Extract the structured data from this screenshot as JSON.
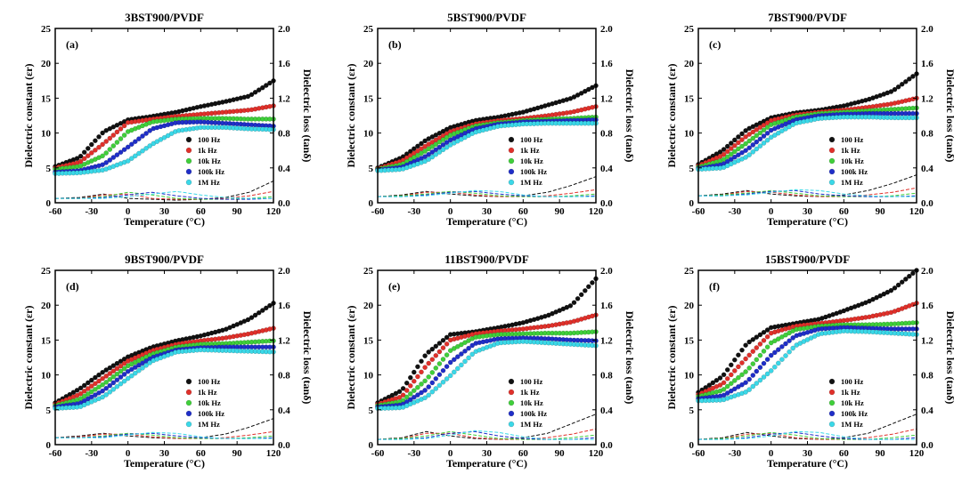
{
  "figure": {
    "temperature_ticks": [
      "-60",
      "-30",
      "0",
      "30",
      "60",
      "90",
      "120"
    ],
    "epsilon_ticks": [
      "0",
      "5",
      "10",
      "15",
      "20",
      "25"
    ],
    "loss_ticks": [
      "0.0",
      "0.4",
      "0.8",
      "1.2",
      "1.6",
      "2.0"
    ],
    "xlabel": "Temperature (°C)",
    "ylabel_left": "Dielectric constant (εr)",
    "ylabel_right": "Dielectric loss (tanδ)",
    "legend": [
      "100  Hz",
      "1k  Hz",
      "10k  Hz",
      "100k  Hz",
      "1M  Hz"
    ]
  },
  "colors": {
    "100 Hz": "#111111",
    "1k Hz": "#e0302a",
    "10k Hz": "#3fcf3a",
    "100k Hz": "#1f2ec8",
    "1M Hz": "#3ad8e8"
  },
  "chart_data": [
    {
      "type": "scatter",
      "panel": "(a)",
      "title": "3BST900/PVDF",
      "xlabel": "Temperature (°C)",
      "ylabel": "Dielectric constant (εr)",
      "y2label": "Dielectric loss (tanδ)",
      "xlim": [
        -60,
        120
      ],
      "ylim": [
        0,
        25
      ],
      "y2lim": [
        0,
        2.0
      ],
      "x": [
        -60,
        -40,
        -20,
        0,
        20,
        40,
        60,
        80,
        100,
        120
      ],
      "series": [
        {
          "name": "100 Hz",
          "values": [
            5.2,
            6.5,
            10.2,
            11.9,
            12.4,
            13.0,
            13.8,
            14.5,
            15.3,
            17.5
          ],
          "loss": [
            0.05,
            0.06,
            0.1,
            0.05,
            0.04,
            0.03,
            0.04,
            0.06,
            0.12,
            0.25
          ]
        },
        {
          "name": "1k Hz",
          "values": [
            5.0,
            5.8,
            8.5,
            11.5,
            12.0,
            12.4,
            12.7,
            13.0,
            13.3,
            13.9
          ],
          "loss": [
            0.05,
            0.05,
            0.09,
            0.1,
            0.05,
            0.04,
            0.04,
            0.05,
            0.08,
            0.13
          ]
        },
        {
          "name": "10k Hz",
          "values": [
            4.8,
            5.2,
            6.8,
            10.2,
            11.6,
            12.0,
            12.1,
            12.1,
            12.0,
            12.0
          ],
          "loss": [
            0.05,
            0.05,
            0.07,
            0.12,
            0.09,
            0.05,
            0.04,
            0.04,
            0.05,
            0.07
          ]
        },
        {
          "name": "100k Hz",
          "values": [
            4.4,
            4.6,
            5.5,
            8.0,
            10.6,
            11.5,
            11.6,
            11.4,
            11.2,
            11.0
          ],
          "loss": [
            0.05,
            0.05,
            0.06,
            0.09,
            0.12,
            0.08,
            0.05,
            0.04,
            0.04,
            0.05
          ]
        },
        {
          "name": "1M Hz",
          "values": [
            4.2,
            4.3,
            4.7,
            6.0,
            8.4,
            10.3,
            10.8,
            10.8,
            10.6,
            10.5
          ],
          "loss": [
            0.05,
            0.05,
            0.05,
            0.07,
            0.1,
            0.13,
            0.09,
            0.06,
            0.05,
            0.05
          ]
        }
      ]
    },
    {
      "type": "scatter",
      "panel": "(b)",
      "title": "5BST900/PVDF",
      "xlabel": "Temperature (°C)",
      "ylabel": "Dielectric constant (εr)",
      "y2label": "Dielectric loss (tanδ)",
      "xlim": [
        -60,
        120
      ],
      "ylim": [
        0,
        25
      ],
      "y2lim": [
        0,
        2.0
      ],
      "x": [
        -60,
        -40,
        -20,
        0,
        20,
        40,
        60,
        80,
        100,
        120
      ],
      "series": [
        {
          "name": "100 Hz",
          "values": [
            5.0,
            6.5,
            9.0,
            10.8,
            11.8,
            12.3,
            13.0,
            14.0,
            15.0,
            16.8
          ],
          "loss": [
            0.07,
            0.09,
            0.13,
            0.1,
            0.08,
            0.07,
            0.08,
            0.12,
            0.2,
            0.3
          ]
        },
        {
          "name": "1k Hz",
          "values": [
            4.9,
            6.0,
            8.2,
            10.2,
            11.3,
            11.8,
            12.1,
            12.5,
            13.0,
            13.8
          ],
          "loss": [
            0.07,
            0.08,
            0.12,
            0.12,
            0.09,
            0.07,
            0.07,
            0.08,
            0.11,
            0.15
          ]
        },
        {
          "name": "10k Hz",
          "values": [
            4.8,
            5.5,
            7.5,
            9.7,
            11.0,
            11.5,
            11.8,
            12.0,
            12.1,
            12.3
          ],
          "loss": [
            0.07,
            0.08,
            0.1,
            0.13,
            0.11,
            0.08,
            0.07,
            0.07,
            0.08,
            0.1
          ]
        },
        {
          "name": "100k Hz",
          "values": [
            4.7,
            5.1,
            6.7,
            9.0,
            10.6,
            11.3,
            11.6,
            11.7,
            11.8,
            11.9
          ],
          "loss": [
            0.07,
            0.07,
            0.09,
            0.12,
            0.13,
            0.1,
            0.08,
            0.07,
            0.07,
            0.08
          ]
        },
        {
          "name": "1M Hz",
          "values": [
            4.6,
            4.8,
            6.0,
            8.3,
            10.1,
            11.0,
            11.3,
            11.4,
            11.4,
            11.4
          ],
          "loss": [
            0.07,
            0.07,
            0.08,
            0.11,
            0.14,
            0.13,
            0.09,
            0.07,
            0.07,
            0.07
          ]
        }
      ]
    },
    {
      "type": "scatter",
      "panel": "(c)",
      "title": "7BST900/PVDF",
      "xlabel": "Temperature (°C)",
      "ylabel": "Dielectric constant (εr)",
      "y2label": "Dielectric loss (tanδ)",
      "xlim": [
        -60,
        120
      ],
      "ylim": [
        0,
        25
      ],
      "y2lim": [
        0,
        2.0
      ],
      "x": [
        -60,
        -40,
        -20,
        0,
        20,
        40,
        60,
        80,
        100,
        120
      ],
      "series": [
        {
          "name": "100 Hz",
          "values": [
            5.5,
            7.5,
            10.5,
            12.2,
            12.9,
            13.3,
            13.9,
            14.8,
            16.0,
            18.5
          ],
          "loss": [
            0.08,
            0.1,
            0.14,
            0.1,
            0.08,
            0.07,
            0.09,
            0.14,
            0.22,
            0.32
          ]
        },
        {
          "name": "1k Hz",
          "values": [
            5.3,
            6.8,
            9.6,
            11.8,
            12.6,
            13.0,
            13.3,
            13.7,
            14.2,
            15.0
          ],
          "loss": [
            0.08,
            0.09,
            0.13,
            0.12,
            0.09,
            0.07,
            0.07,
            0.09,
            0.12,
            0.17
          ]
        },
        {
          "name": "10k Hz",
          "values": [
            5.1,
            6.1,
            8.6,
            11.2,
            12.3,
            12.8,
            13.0,
            13.2,
            13.4,
            13.6
          ],
          "loss": [
            0.08,
            0.09,
            0.11,
            0.14,
            0.11,
            0.08,
            0.07,
            0.07,
            0.08,
            0.11
          ]
        },
        {
          "name": "100k Hz",
          "values": [
            4.9,
            5.5,
            7.6,
            10.4,
            11.9,
            12.5,
            12.7,
            12.8,
            12.8,
            12.8
          ],
          "loss": [
            0.08,
            0.08,
            0.1,
            0.13,
            0.14,
            0.1,
            0.08,
            0.07,
            0.07,
            0.08
          ]
        },
        {
          "name": "1M Hz",
          "values": [
            4.8,
            5.0,
            6.6,
            9.4,
            11.4,
            12.1,
            12.3,
            12.3,
            12.2,
            12.2
          ],
          "loss": [
            0.08,
            0.08,
            0.09,
            0.12,
            0.15,
            0.14,
            0.1,
            0.08,
            0.07,
            0.07
          ]
        }
      ]
    },
    {
      "type": "scatter",
      "panel": "(d)",
      "title": "9BST900/PVDF",
      "xlabel": "Temperature (°C)",
      "ylabel": "Dielectric constant (εr)",
      "y2label": "Dielectric loss (tanδ)",
      "xlim": [
        -60,
        120
      ],
      "ylim": [
        0,
        25
      ],
      "y2lim": [
        0,
        2.0
      ],
      "x": [
        -60,
        -40,
        -20,
        0,
        20,
        40,
        60,
        80,
        100,
        120
      ],
      "series": [
        {
          "name": "100 Hz",
          "values": [
            6.0,
            8.0,
            10.5,
            12.6,
            14.0,
            14.9,
            15.6,
            16.5,
            18.0,
            20.3
          ],
          "loss": [
            0.08,
            0.1,
            0.13,
            0.1,
            0.08,
            0.07,
            0.08,
            0.12,
            0.2,
            0.3
          ]
        },
        {
          "name": "1k Hz",
          "values": [
            5.8,
            7.2,
            9.6,
            12.0,
            13.5,
            14.4,
            14.9,
            15.3,
            15.9,
            16.7
          ],
          "loss": [
            0.08,
            0.09,
            0.12,
            0.12,
            0.09,
            0.07,
            0.07,
            0.08,
            0.11,
            0.15
          ]
        },
        {
          "name": "10k Hz",
          "values": [
            5.6,
            6.5,
            8.7,
            11.3,
            13.0,
            14.0,
            14.4,
            14.5,
            14.7,
            14.9
          ],
          "loss": [
            0.08,
            0.08,
            0.1,
            0.13,
            0.11,
            0.08,
            0.07,
            0.07,
            0.08,
            0.1
          ]
        },
        {
          "name": "100k Hz",
          "values": [
            5.4,
            5.9,
            7.8,
            10.5,
            12.5,
            13.6,
            13.9,
            14.0,
            14.0,
            14.0
          ],
          "loss": [
            0.08,
            0.08,
            0.09,
            0.12,
            0.13,
            0.1,
            0.08,
            0.07,
            0.07,
            0.08
          ]
        },
        {
          "name": "1M Hz",
          "values": [
            5.2,
            5.4,
            6.9,
            9.5,
            12.0,
            13.3,
            13.6,
            13.5,
            13.4,
            13.3
          ],
          "loss": [
            0.08,
            0.08,
            0.08,
            0.11,
            0.14,
            0.13,
            0.09,
            0.07,
            0.07,
            0.07
          ]
        }
      ]
    },
    {
      "type": "scatter",
      "panel": "(e)",
      "title": "11BST900/PVDF",
      "xlabel": "Temperature (°C)",
      "ylabel": "Dielectric constant (εr)",
      "y2label": "Dielectric loss (tanδ)",
      "xlim": [
        -60,
        120
      ],
      "ylim": [
        0,
        25
      ],
      "y2lim": [
        0,
        2.0
      ],
      "x": [
        -60,
        -40,
        -20,
        0,
        20,
        40,
        60,
        80,
        100,
        120
      ],
      "series": [
        {
          "name": "100 Hz",
          "values": [
            6.0,
            7.8,
            13.0,
            15.8,
            16.2,
            16.8,
            17.5,
            18.5,
            20.0,
            23.8
          ],
          "loss": [
            0.06,
            0.08,
            0.15,
            0.1,
            0.07,
            0.06,
            0.08,
            0.13,
            0.24,
            0.35
          ]
        },
        {
          "name": "1k Hz",
          "values": [
            5.8,
            6.9,
            11.3,
            15.0,
            15.9,
            16.3,
            16.6,
            17.0,
            17.6,
            18.6
          ],
          "loss": [
            0.06,
            0.07,
            0.13,
            0.13,
            0.08,
            0.06,
            0.06,
            0.08,
            0.12,
            0.18
          ]
        },
        {
          "name": "10k Hz",
          "values": [
            5.6,
            6.2,
            9.3,
            13.5,
            15.4,
            15.8,
            15.9,
            16.0,
            16.0,
            16.2
          ],
          "loss": [
            0.06,
            0.07,
            0.1,
            0.15,
            0.11,
            0.07,
            0.06,
            0.06,
            0.08,
            0.11
          ]
        },
        {
          "name": "100k Hz",
          "values": [
            5.4,
            5.7,
            7.9,
            11.8,
            14.5,
            15.2,
            15.3,
            15.2,
            15.0,
            14.9
          ],
          "loss": [
            0.06,
            0.06,
            0.08,
            0.13,
            0.15,
            0.1,
            0.07,
            0.06,
            0.06,
            0.08
          ]
        },
        {
          "name": "1M Hz",
          "values": [
            5.2,
            5.3,
            6.8,
            9.9,
            13.3,
            14.6,
            14.8,
            14.6,
            14.4,
            14.2
          ],
          "loss": [
            0.06,
            0.06,
            0.07,
            0.11,
            0.16,
            0.14,
            0.09,
            0.06,
            0.06,
            0.06
          ]
        }
      ]
    },
    {
      "type": "scatter",
      "panel": "(f)",
      "title": "15BST900/PVDF",
      "xlabel": "Temperature (°C)",
      "ylabel": "Dielectric constant (εr)",
      "y2label": "Dielectric loss (tanδ)",
      "xlim": [
        -60,
        120
      ],
      "ylim": [
        0,
        25
      ],
      "y2lim": [
        0,
        2.0
      ],
      "x": [
        -60,
        -40,
        -20,
        0,
        20,
        40,
        60,
        80,
        100,
        120
      ],
      "series": [
        {
          "name": "100 Hz",
          "values": [
            7.5,
            9.8,
            14.5,
            16.8,
            17.4,
            18.0,
            19.2,
            20.5,
            22.2,
            25.0
          ],
          "loss": [
            0.06,
            0.08,
            0.14,
            0.1,
            0.07,
            0.06,
            0.08,
            0.13,
            0.24,
            0.35
          ]
        },
        {
          "name": "1k Hz",
          "values": [
            7.2,
            8.7,
            12.5,
            16.0,
            17.0,
            17.4,
            17.8,
            18.3,
            19.0,
            20.3
          ],
          "loss": [
            0.06,
            0.07,
            0.12,
            0.13,
            0.08,
            0.06,
            0.06,
            0.08,
            0.12,
            0.18
          ]
        },
        {
          "name": "10k Hz",
          "values": [
            6.9,
            7.8,
            10.6,
            14.6,
            16.5,
            17.0,
            17.2,
            17.2,
            17.3,
            17.5
          ],
          "loss": [
            0.06,
            0.07,
            0.1,
            0.14,
            0.11,
            0.07,
            0.06,
            0.06,
            0.08,
            0.11
          ]
        },
        {
          "name": "100k Hz",
          "values": [
            6.6,
            7.0,
            9.0,
            12.8,
            15.6,
            16.6,
            16.8,
            16.7,
            16.6,
            16.6
          ],
          "loss": [
            0.06,
            0.06,
            0.08,
            0.12,
            0.14,
            0.1,
            0.07,
            0.06,
            0.06,
            0.08
          ]
        },
        {
          "name": "1M Hz",
          "values": [
            6.3,
            6.4,
            7.6,
            10.6,
            14.2,
            15.9,
            16.3,
            16.2,
            16.0,
            15.8
          ],
          "loss": [
            0.06,
            0.06,
            0.07,
            0.1,
            0.15,
            0.14,
            0.09,
            0.06,
            0.06,
            0.06
          ]
        }
      ]
    }
  ]
}
